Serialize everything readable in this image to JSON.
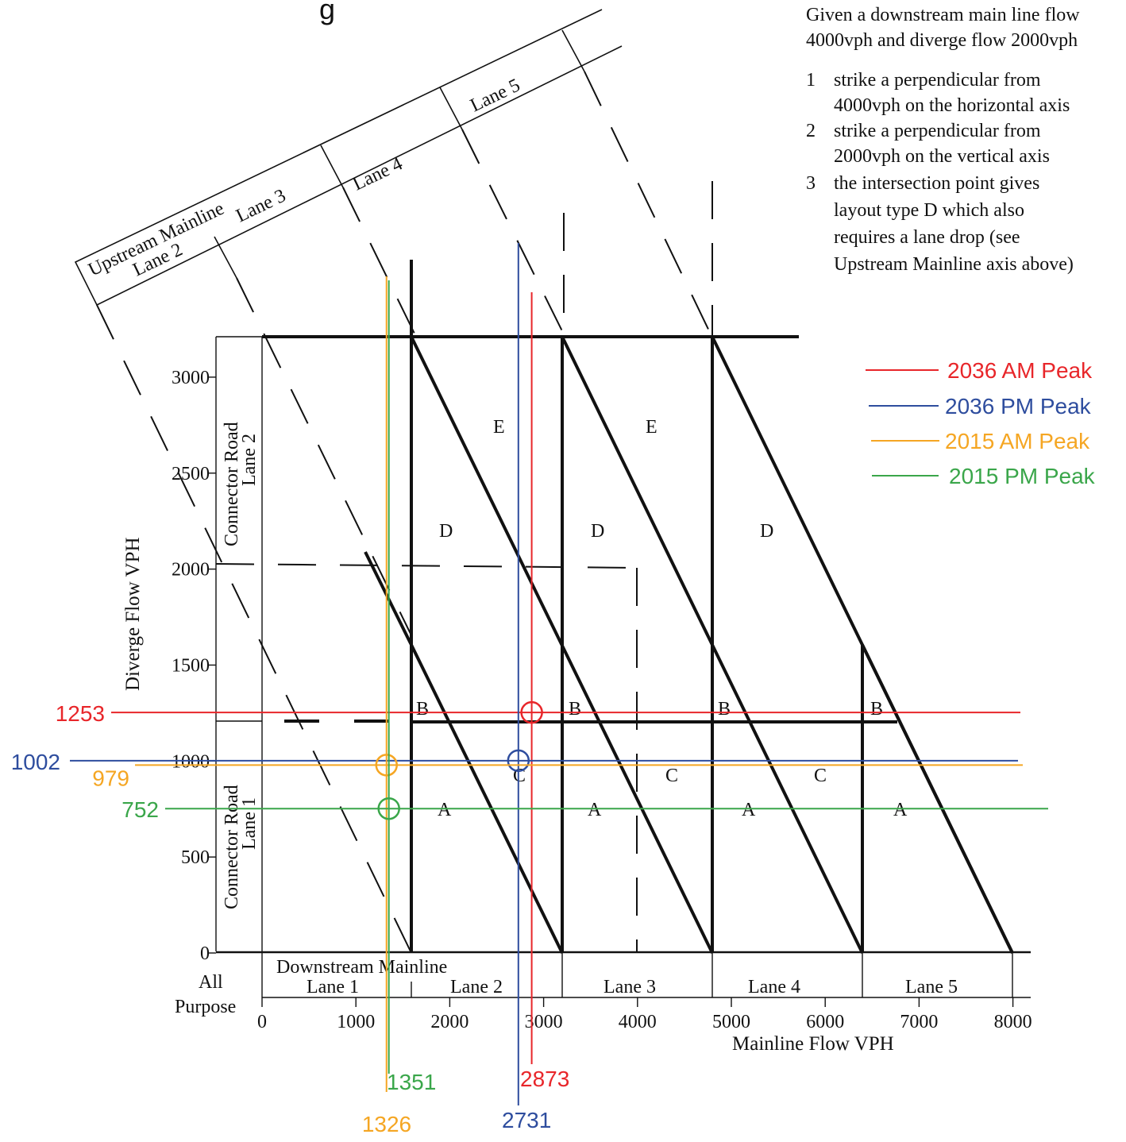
{
  "title_fragment": "g",
  "instructions": {
    "intro_line1": "Given a downstream main line flow",
    "intro_line2": "4000vph and diverge flow 2000vph",
    "steps": [
      {
        "num": "1",
        "line1": "strike a perpendicular from",
        "line2": "4000vph on the horizontal axis"
      },
      {
        "num": "2",
        "line1": "strike a perpendicular from",
        "line2": "2000vph on the vertical axis"
      },
      {
        "num": "3",
        "line1": "the intersection point gives",
        "line2": "layout type D which also",
        "line3": "requires a lane drop (see",
        "line4": "Upstream Mainline axis above)"
      }
    ]
  },
  "axes": {
    "x_title": "Mainline Flow VPH",
    "y_title": "Diverge Flow VPH",
    "x_ticks": [
      "0",
      "1000",
      "2000",
      "3000",
      "4000",
      "5000",
      "6000",
      "7000",
      "8000"
    ],
    "y_ticks": [
      "0",
      "500",
      "1000",
      "1500",
      "2000",
      "2500",
      "3000"
    ],
    "all_purpose_line1": "All",
    "all_purpose_line2": "Purpose"
  },
  "bands": {
    "downstream_title": "Downstream Mainline",
    "downstream_lanes": [
      "Lane 1",
      "Lane 2",
      "Lane 3",
      "Lane 4",
      "Lane 5"
    ],
    "connector_lane1_line1": "Connector Road",
    "connector_lane1_line2": "Lane 1",
    "connector_lane2_line1": "Connector Road",
    "connector_lane2_line2": "Lane 2",
    "upstream_title": "Upstream Mainline",
    "upstream_lanes": [
      "Lane 2",
      "Lane 3",
      "Lane 4",
      "Lane 5"
    ]
  },
  "zone_labels": {
    "E": "E",
    "D": "D",
    "C": "C",
    "B": "B",
    "A": "A"
  },
  "scenarios": [
    {
      "name": "2036 AM Peak",
      "color": "#e8262a",
      "mainline": 2873,
      "diverge": 1253,
      "mainline_label": "2873",
      "diverge_label": "1253"
    },
    {
      "name": "2036 PM Peak",
      "color": "#2e4d9e",
      "mainline": 2731,
      "diverge": 1002,
      "mainline_label": "2731",
      "diverge_label": "1002"
    },
    {
      "name": "2015 AM Peak",
      "color": "#f5a623",
      "mainline": 1326,
      "diverge": 979,
      "mainline_label": "1326",
      "diverge_label": "979"
    },
    {
      "name": "2015 PM Peak",
      "color": "#3aa64a",
      "mainline": 1351,
      "diverge": 752,
      "mainline_label": "1351",
      "diverge_label": "752"
    }
  ],
  "example": {
    "mainline": 4000,
    "diverge": 2000
  }
}
